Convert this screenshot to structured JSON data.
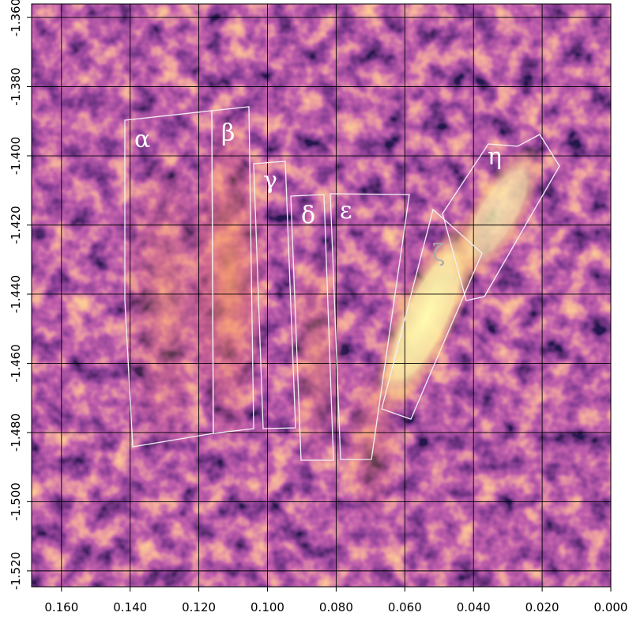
{
  "chart_data": {
    "type": "image",
    "xlim": [
      0.1687,
      0.0
    ],
    "ylim": [
      -1.5246,
      -1.3561
    ],
    "xticks": [
      {
        "value": 0.16,
        "label": "0.160"
      },
      {
        "value": 0.14,
        "label": "0.140"
      },
      {
        "value": 0.12,
        "label": "0.120"
      },
      {
        "value": 0.1,
        "label": "0.100"
      },
      {
        "value": 0.08,
        "label": "0.080"
      },
      {
        "value": 0.06,
        "label": "0.060"
      },
      {
        "value": 0.04,
        "label": "0.040"
      },
      {
        "value": 0.02,
        "label": "0.020"
      },
      {
        "value": 0.0,
        "label": "0.000"
      }
    ],
    "yticks": [
      {
        "value": -1.36,
        "label": "-1.360"
      },
      {
        "value": -1.38,
        "label": "-1.380"
      },
      {
        "value": -1.4,
        "label": "-1.400"
      },
      {
        "value": -1.42,
        "label": "-1.420"
      },
      {
        "value": -1.44,
        "label": "-1.440"
      },
      {
        "value": -1.46,
        "label": "-1.460"
      },
      {
        "value": -1.48,
        "label": "-1.480"
      },
      {
        "value": -1.5,
        "label": "-1.500"
      },
      {
        "value": -1.52,
        "label": "-1.520"
      }
    ],
    "grid": true,
    "annotations": [
      "α",
      "β",
      "γ",
      "δ",
      "ε",
      "ζ",
      "η"
    ]
  }
}
